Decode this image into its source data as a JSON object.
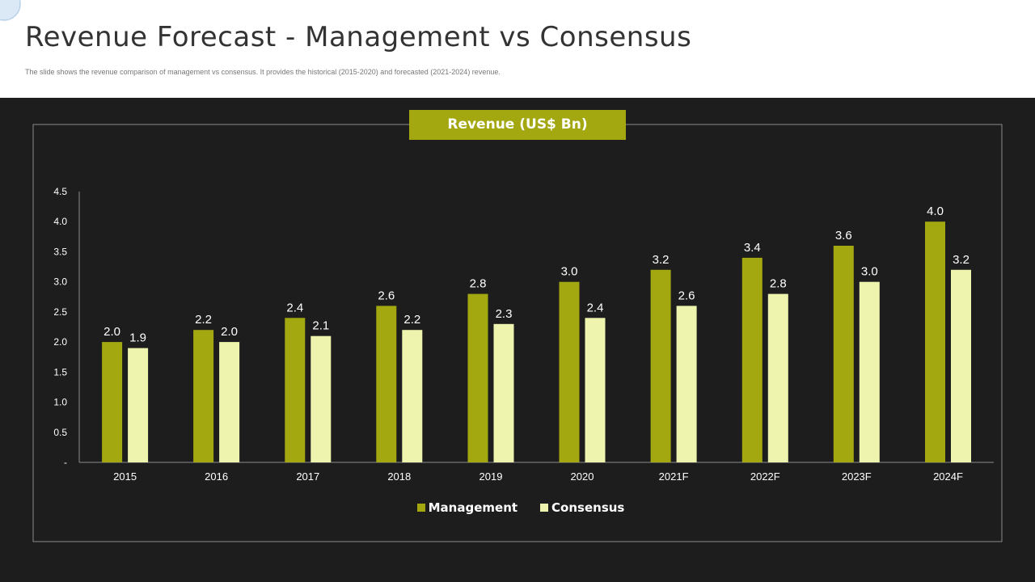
{
  "page": {
    "title": "Revenue Forecast - Management vs Consensus",
    "subtitle": "The slide shows the revenue comparison of management vs consensus. It provides the historical (2015-2020) and forecasted (2021-2024) revenue."
  },
  "colors": {
    "background": "#1d1d1d",
    "accent": "#a3a810",
    "management": "#a3a810",
    "consensus": "#eef3ae",
    "axis": "#a6a6a6",
    "text": "#ffffff"
  },
  "chart_data": {
    "type": "bar",
    "title": "Revenue (US$ Bn)",
    "categories": [
      "2015",
      "2016",
      "2017",
      "2018",
      "2019",
      "2020",
      "2021F",
      "2022F",
      "2023F",
      "2024F"
    ],
    "series": [
      {
        "name": "Management",
        "values": [
          2.0,
          2.2,
          2.4,
          2.6,
          2.8,
          3.0,
          3.2,
          3.4,
          3.6,
          4.0
        ]
      },
      {
        "name": "Consensus",
        "values": [
          1.9,
          2.0,
          2.1,
          2.2,
          2.3,
          2.4,
          2.6,
          2.8,
          3.0,
          3.2
        ]
      }
    ],
    "yticks": [
      "-",
      "0.5",
      "1.0",
      "1.5",
      "2.0",
      "2.5",
      "3.0",
      "3.5",
      "4.0",
      "4.5"
    ],
    "ylim": [
      0,
      4.5
    ],
    "grid": false,
    "legend_position": "bottom"
  }
}
